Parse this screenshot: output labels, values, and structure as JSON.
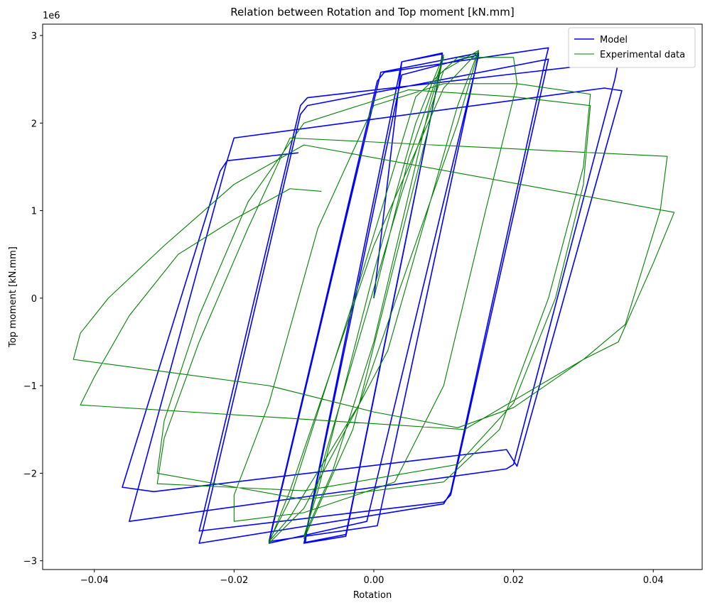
{
  "chart_data": {
    "type": "line",
    "title": "Relation between Rotation and Top moment [kN.mm]",
    "x_label": "Rotation",
    "y_label": "Top moment [kN.mm]",
    "y_offset_label": "1e6",
    "xlim": [
      -0.0474,
      0.047
    ],
    "ylim": [
      -3.1,
      3.13
    ],
    "xticks": [
      {
        "value": -0.04,
        "label": "−0.04"
      },
      {
        "value": -0.02,
        "label": "−0.02"
      },
      {
        "value": 0,
        "label": "0.00"
      },
      {
        "value": 0.02,
        "label": "0.02"
      },
      {
        "value": 0.04,
        "label": "0.04"
      }
    ],
    "yticks": [
      {
        "value": -3,
        "label": "−3"
      },
      {
        "value": -2,
        "label": "−2"
      },
      {
        "value": -1,
        "label": "−1"
      },
      0,
      1,
      2,
      3
    ],
    "legend": "upper right",
    "series": [
      {
        "name": "Model",
        "color": "#0000ff",
        "width": 1.6,
        "x": [
          0,
          0.004,
          0.0098,
          0.0095,
          -0.004,
          -0.0098,
          -0.0095,
          0.004,
          0.0098,
          0.0095,
          -0.004,
          -0.01,
          -0.0095,
          0.004,
          0.015,
          0.0145,
          -0.001,
          -0.015,
          -0.0145,
          0.001,
          0.015,
          0.0145,
          0.0005,
          -0.015,
          -0.0145,
          0.0005,
          0.0015,
          0.025,
          0.0245,
          0.011,
          0.01,
          -0.025,
          -0.0245,
          -0.0105,
          -0.0095,
          0.025,
          0.0245,
          0.011,
          0.01,
          -0.025,
          -0.0245,
          -0.0105,
          -0.0095,
          0.035,
          0.0345,
          0.02,
          0.019,
          -0.035,
          -0.0345,
          -0.021,
          -0.02,
          0.033,
          0.0355,
          0.0205,
          0.019,
          -0.0315,
          -0.036,
          -0.022,
          -0.021,
          -0.0108
        ],
        "values": [
          0,
          2.7,
          2.79,
          2.6,
          -2.7,
          -2.79,
          -2.6,
          2.7,
          2.8,
          2.6,
          -2.72,
          -2.8,
          -2.62,
          2.55,
          2.78,
          2.6,
          -2.55,
          -2.8,
          -2.62,
          2.58,
          2.8,
          2.6,
          -2.6,
          -2.78,
          -2.6,
          2.48,
          2.58,
          2.86,
          2.7,
          -2.22,
          -2.35,
          -2.8,
          -2.66,
          2.1,
          2.2,
          2.73,
          2.55,
          -2.25,
          -2.33,
          -2.66,
          -2.5,
          2.2,
          2.29,
          2.7,
          2.5,
          -1.9,
          -1.95,
          -2.55,
          -2.4,
          1.57,
          1.83,
          2.4,
          2.37,
          -1.92,
          -1.73,
          -2.21,
          -2.16,
          1.45,
          1.57,
          1.66
        ]
      },
      {
        "name": "Experimental data",
        "color": "#008000",
        "width": 1.1,
        "x": [
          0,
          0.005,
          0.01,
          0.008,
          0,
          -0.006,
          -0.01,
          -0.008,
          0,
          0.006,
          0.01,
          0.008,
          -0.003,
          -0.01,
          -0.007,
          0.004,
          0.01,
          0.015,
          0.012,
          0.002,
          -0.01,
          -0.015,
          -0.012,
          0,
          0.01,
          0.015,
          0.012,
          -0.002,
          -0.012,
          -0.015,
          -0.012,
          -0.002,
          0.006,
          0.012,
          0.02,
          0.0205,
          0.016,
          0.01,
          0.003,
          -0.01,
          -0.02,
          -0.02,
          -0.015,
          -0.008,
          0,
          0.01,
          0.0205,
          0.031,
          0.03,
          0.025,
          0.018,
          0.01,
          -0.01,
          -0.031,
          -0.03,
          -0.025,
          -0.018,
          -0.01,
          0.005,
          0.02,
          0.031,
          0.03,
          0.026,
          0.02,
          0.012,
          -0.01,
          -0.031,
          -0.03,
          -0.025,
          -0.018,
          -0.012,
          0.042,
          0.041,
          0.036,
          0.03,
          0.02,
          0.012,
          0,
          -0.015,
          -0.043,
          -0.042,
          -0.038,
          -0.03,
          -0.02,
          -0.01,
          0.043,
          0.04,
          0.035,
          0.03,
          0.013,
          -0.042,
          -0.04,
          -0.035,
          -0.028,
          -0.02,
          -0.012,
          -0.0075
        ],
        "values": [
          0,
          1.6,
          2.75,
          2.2,
          -0.5,
          -2.0,
          -2.72,
          -2.2,
          0.3,
          2.0,
          2.78,
          2.0,
          -1.5,
          -2.75,
          -1.8,
          1.2,
          2.6,
          2.83,
          2.2,
          -0.6,
          -2.4,
          -2.8,
          -2.2,
          0.6,
          2.4,
          2.82,
          2.0,
          -1.2,
          -2.5,
          -2.78,
          -2.3,
          0.2,
          2.3,
          2.75,
          2.75,
          2.45,
          1.0,
          -1.0,
          -2.1,
          -2.45,
          -2.55,
          -2.25,
          -1.2,
          0.8,
          2.2,
          2.45,
          2.45,
          2.33,
          1.5,
          0,
          -1.5,
          -2.1,
          -2.3,
          -2.0,
          -1.4,
          -0.2,
          1.1,
          2.0,
          2.38,
          2.3,
          2.2,
          1.3,
          0,
          -1.2,
          -1.9,
          -2.2,
          -2.12,
          -1.6,
          -0.5,
          0.8,
          1.83,
          1.62,
          1.0,
          -0.3,
          -0.7,
          -1.25,
          -1.48,
          -1.3,
          -1.0,
          -0.7,
          -0.4,
          0,
          0.6,
          1.3,
          1.75,
          0.98,
          0.4,
          -0.5,
          -0.7,
          -1.5,
          -1.22,
          -0.9,
          -0.2,
          0.5,
          0.9,
          1.25,
          1.22
        ]
      }
    ]
  }
}
